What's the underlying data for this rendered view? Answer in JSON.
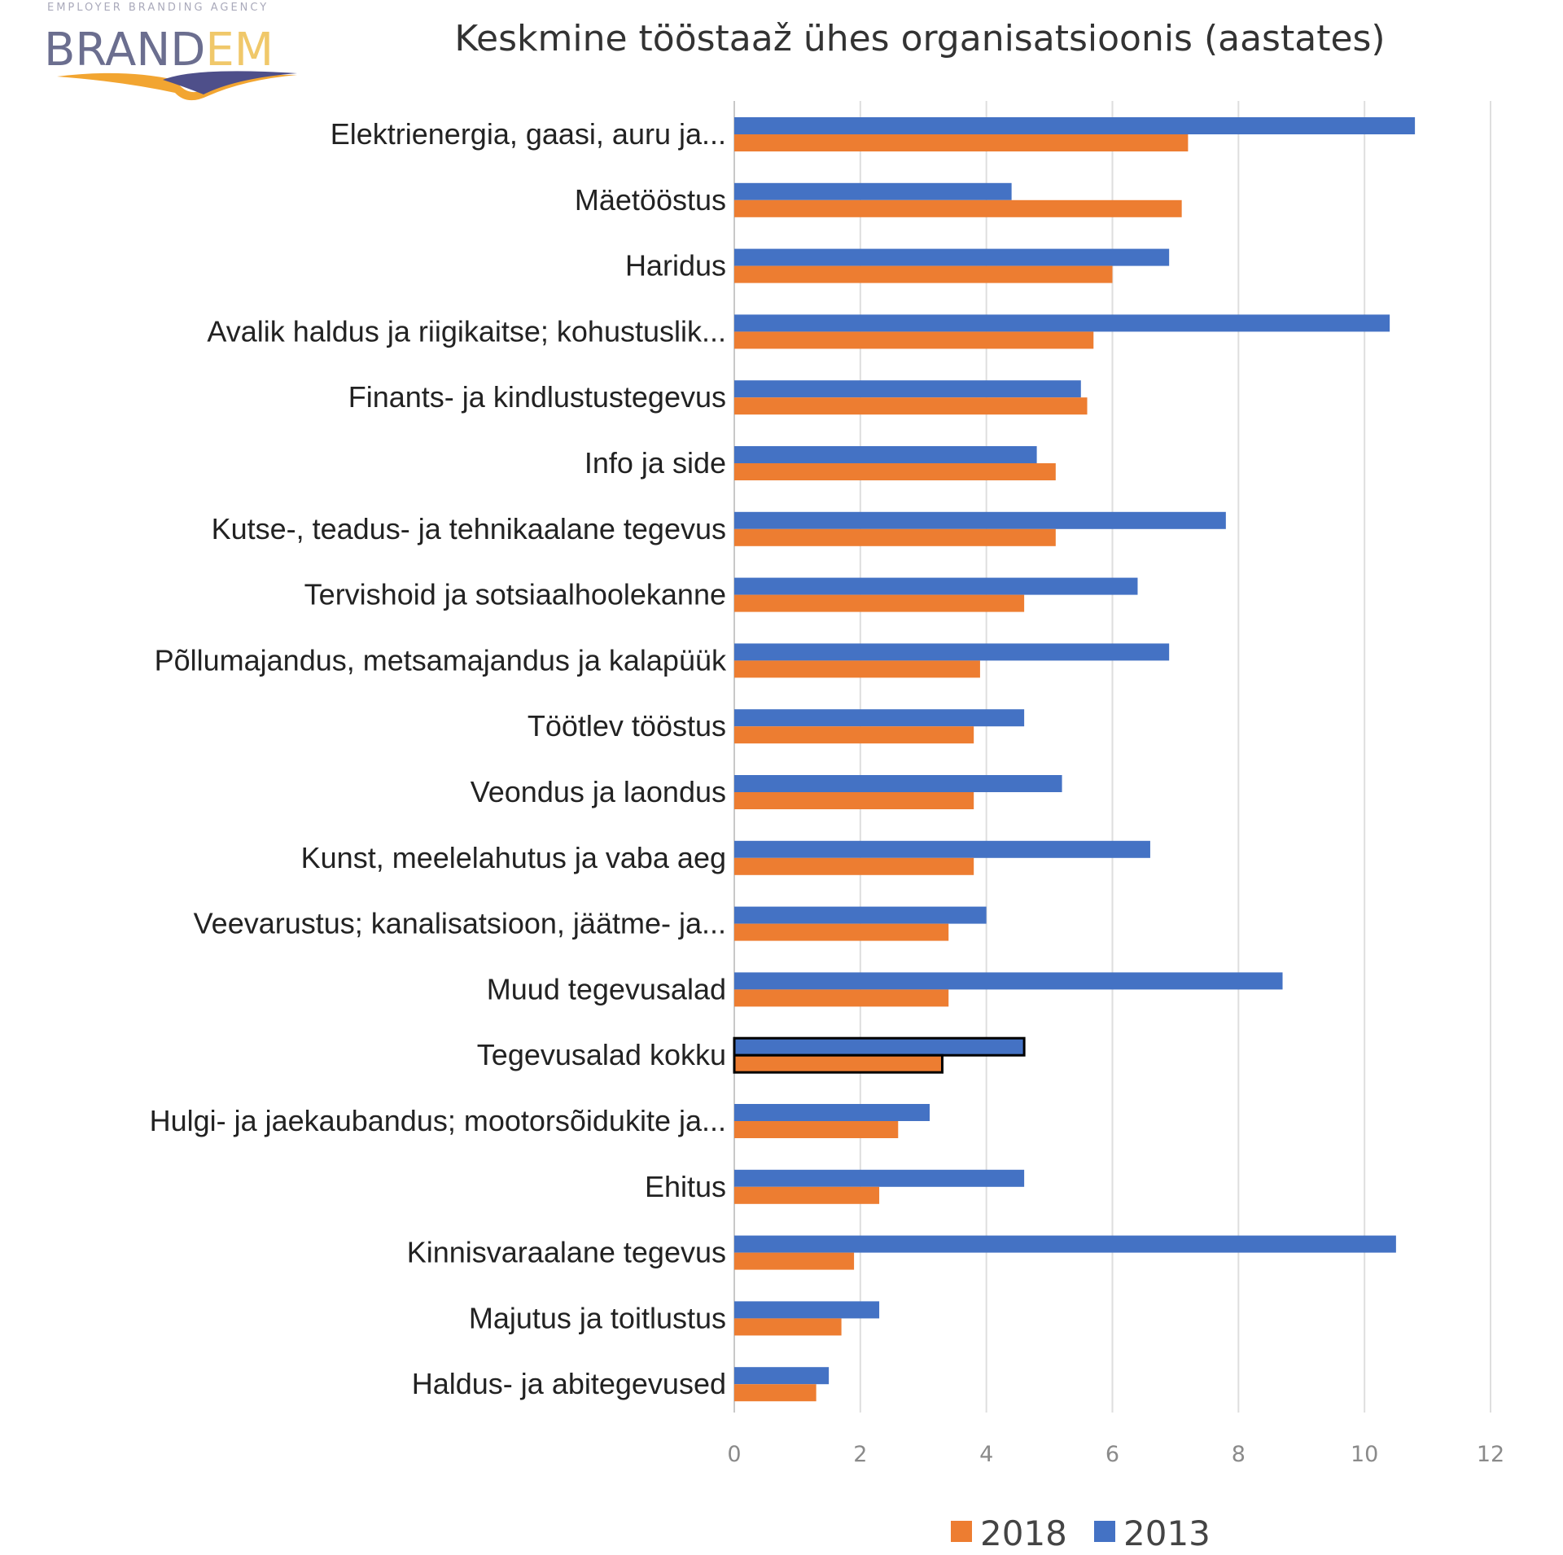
{
  "logo": {
    "tagline": "EMPLOYER BRANDING AGENCY",
    "name_part1": "BRAND",
    "name_part2": "EM"
  },
  "chart_data": {
    "type": "bar",
    "orientation": "horizontal",
    "title": "Keskmine tööstaaž ühes organisatsioonis (aastates)",
    "xlabel": "",
    "ylabel": "",
    "xlim": [
      0,
      12
    ],
    "xticks": [
      0,
      2,
      4,
      6,
      8,
      10,
      12
    ],
    "grid": "vertical",
    "legend_position": "bottom",
    "highlighted_category": "Tegevusalad kokku",
    "categories": [
      "Elektrienergia, gaasi, auru ja...",
      "Mäetööstus",
      "Haridus",
      "Avalik haldus ja riigikaitse; kohustuslik...",
      "Finants- ja kindlustustegevus",
      "Info ja side",
      "Kutse-, teadus- ja tehnikaalane tegevus",
      "Tervishoid ja sotsiaalhoolekanne",
      "Põllumajandus, metsamajandus ja kalapüük",
      "Töötlev tööstus",
      "Veondus ja laondus",
      "Kunst, meelelahutus ja vaba aeg",
      "Veevarustus; kanalisatsioon, jäätme- ja...",
      "Muud tegevusalad",
      "Tegevusalad kokku",
      "Hulgi- ja jaekaubandus; mootorsõidukite ja...",
      "Ehitus",
      "Kinnisvaraalane tegevus",
      "Majutus ja toitlustus",
      "Haldus- ja abitegevused"
    ],
    "series": [
      {
        "name": "2013",
        "color": "#4472c4",
        "values": [
          10.8,
          4.4,
          6.9,
          10.4,
          5.5,
          4.8,
          7.8,
          6.4,
          6.9,
          4.6,
          5.2,
          6.6,
          4.0,
          8.7,
          4.6,
          3.1,
          4.6,
          10.5,
          2.3,
          1.5
        ]
      },
      {
        "name": "2018",
        "color": "#ed7d31",
        "values": [
          7.2,
          7.1,
          6.0,
          5.7,
          5.6,
          5.1,
          5.1,
          4.6,
          3.9,
          3.8,
          3.8,
          3.8,
          3.4,
          3.4,
          3.3,
          2.6,
          2.3,
          1.9,
          1.7,
          1.3
        ]
      }
    ],
    "legend_order": [
      "2018",
      "2013"
    ]
  }
}
